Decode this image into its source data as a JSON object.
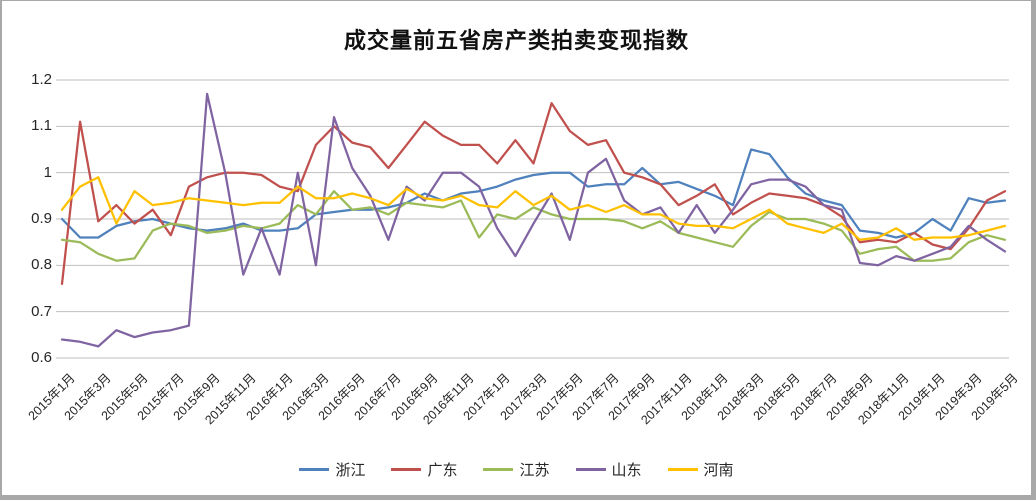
{
  "page": {
    "background": "#ffffff",
    "frame_color": "#a8a8a8",
    "gridline_color": "#bfbfbf",
    "text_color": "#262626"
  },
  "chart_data": {
    "type": "line",
    "title": "成交量前五省房产类拍卖变现指数",
    "xlabel": "",
    "ylabel": "",
    "ylim": [
      0.6,
      1.2
    ],
    "grid": true,
    "legend_position": "bottom",
    "y_tick_values": [
      1.2,
      1.1,
      1.0,
      0.9,
      0.8,
      0.7,
      0.6
    ],
    "y_tick_labels": [
      "1.2",
      "1.1",
      "1",
      "0.9",
      "0.8",
      "0.7",
      "0.6"
    ],
    "x_tick_labels": [
      "2015年1月",
      "2015年3月",
      "2015年5月",
      "2015年7月",
      "2015年9月",
      "2015年11月",
      "2016年1月",
      "2016年3月",
      "2016年5月",
      "2016年7月",
      "2016年9月",
      "2016年11月",
      "2017年1月",
      "2017年3月",
      "2017年5月",
      "2017年7月",
      "2017年9月",
      "2017年11月",
      "2018年1月",
      "2018年3月",
      "2018年5月",
      "2018年7月",
      "2018年9月",
      "2018年11月",
      "2019年1月",
      "2019年3月",
      "2019年5月"
    ],
    "months": [
      "2015-01",
      "2015-02",
      "2015-03",
      "2015-04",
      "2015-05",
      "2015-06",
      "2015-07",
      "2015-08",
      "2015-09",
      "2015-10",
      "2015-11",
      "2015-12",
      "2016-01",
      "2016-02",
      "2016-03",
      "2016-04",
      "2016-05",
      "2016-06",
      "2016-07",
      "2016-08",
      "2016-09",
      "2016-10",
      "2016-11",
      "2016-12",
      "2017-01",
      "2017-02",
      "2017-03",
      "2017-04",
      "2017-05",
      "2017-06",
      "2017-07",
      "2017-08",
      "2017-09",
      "2017-10",
      "2017-11",
      "2017-12",
      "2018-01",
      "2018-02",
      "2018-03",
      "2018-04",
      "2018-05",
      "2018-06",
      "2018-07",
      "2018-08",
      "2018-09",
      "2018-10",
      "2018-11",
      "2018-12",
      "2019-01",
      "2019-02",
      "2019-03",
      "2019-04",
      "2019-05"
    ],
    "series": [
      {
        "name": "浙江",
        "color": "#4F81BD",
        "values": [
          0.9,
          0.86,
          0.86,
          0.885,
          0.895,
          0.9,
          0.89,
          0.88,
          0.875,
          0.88,
          0.89,
          0.875,
          0.875,
          0.88,
          0.91,
          0.915,
          0.92,
          0.92,
          0.925,
          0.935,
          0.955,
          0.94,
          0.955,
          0.96,
          0.97,
          0.985,
          0.995,
          1.0,
          1.0,
          0.97,
          0.975,
          0.975,
          1.01,
          0.975,
          0.98,
          0.965,
          0.95,
          0.93,
          1.05,
          1.04,
          0.99,
          0.955,
          0.94,
          0.93,
          0.875,
          0.87,
          0.86,
          0.87,
          0.9,
          0.875,
          0.945,
          0.935,
          0.94
        ]
      },
      {
        "name": "广东",
        "color": "#C0504D",
        "values": [
          0.76,
          1.11,
          0.895,
          0.93,
          0.89,
          0.92,
          0.865,
          0.97,
          0.99,
          1.0,
          1.0,
          0.995,
          0.97,
          0.96,
          1.06,
          1.1,
          1.065,
          1.055,
          1.01,
          1.06,
          1.11,
          1.08,
          1.06,
          1.06,
          1.02,
          1.07,
          1.02,
          1.15,
          1.09,
          1.06,
          1.07,
          1.0,
          0.99,
          0.975,
          0.93,
          0.95,
          0.975,
          0.91,
          0.935,
          0.955,
          0.95,
          0.945,
          0.93,
          0.905,
          0.85,
          0.855,
          0.85,
          0.87,
          0.845,
          0.835,
          0.88,
          0.94,
          0.96
        ]
      },
      {
        "name": "江苏",
        "color": "#9BBB59",
        "values": [
          0.855,
          0.85,
          0.825,
          0.81,
          0.815,
          0.875,
          0.89,
          0.885,
          0.87,
          0.875,
          0.885,
          0.88,
          0.89,
          0.93,
          0.91,
          0.96,
          0.92,
          0.925,
          0.91,
          0.935,
          0.93,
          0.925,
          0.94,
          0.86,
          0.91,
          0.9,
          0.925,
          0.91,
          0.9,
          0.9,
          0.9,
          0.895,
          0.88,
          0.895,
          0.87,
          0.86,
          0.85,
          0.84,
          0.885,
          0.915,
          0.9,
          0.9,
          0.89,
          0.875,
          0.825,
          0.835,
          0.84,
          0.81,
          0.81,
          0.815,
          0.85,
          0.865,
          0.855
        ]
      },
      {
        "name": "山东",
        "color": "#8064A2",
        "values": [
          0.64,
          0.635,
          0.625,
          0.66,
          0.645,
          0.655,
          0.66,
          0.67,
          1.17,
          1.0,
          0.78,
          0.88,
          0.78,
          1.0,
          0.8,
          1.12,
          1.01,
          0.95,
          0.855,
          0.97,
          0.94,
          1.0,
          1.0,
          0.97,
          0.88,
          0.82,
          0.89,
          0.955,
          0.855,
          1.0,
          1.03,
          0.94,
          0.91,
          0.925,
          0.87,
          0.93,
          0.87,
          0.92,
          0.975,
          0.985,
          0.985,
          0.97,
          0.93,
          0.92,
          0.805,
          0.8,
          0.82,
          0.81,
          0.825,
          0.84,
          0.885,
          0.855,
          0.83
        ]
      },
      {
        "name": "河南",
        "color": "#FFC000",
        "values": [
          0.92,
          0.97,
          0.99,
          0.89,
          0.96,
          0.93,
          0.935,
          0.945,
          0.94,
          0.935,
          0.93,
          0.935,
          0.935,
          0.97,
          0.945,
          0.945,
          0.955,
          0.945,
          0.93,
          0.965,
          0.945,
          0.94,
          0.95,
          0.93,
          0.925,
          0.96,
          0.93,
          0.95,
          0.92,
          0.93,
          0.915,
          0.93,
          0.91,
          0.91,
          0.89,
          0.885,
          0.885,
          0.88,
          0.9,
          0.92,
          0.89,
          0.88,
          0.87,
          0.89,
          0.855,
          0.86,
          0.88,
          0.855,
          0.86,
          0.86,
          0.865,
          0.875,
          0.885
        ]
      }
    ]
  }
}
